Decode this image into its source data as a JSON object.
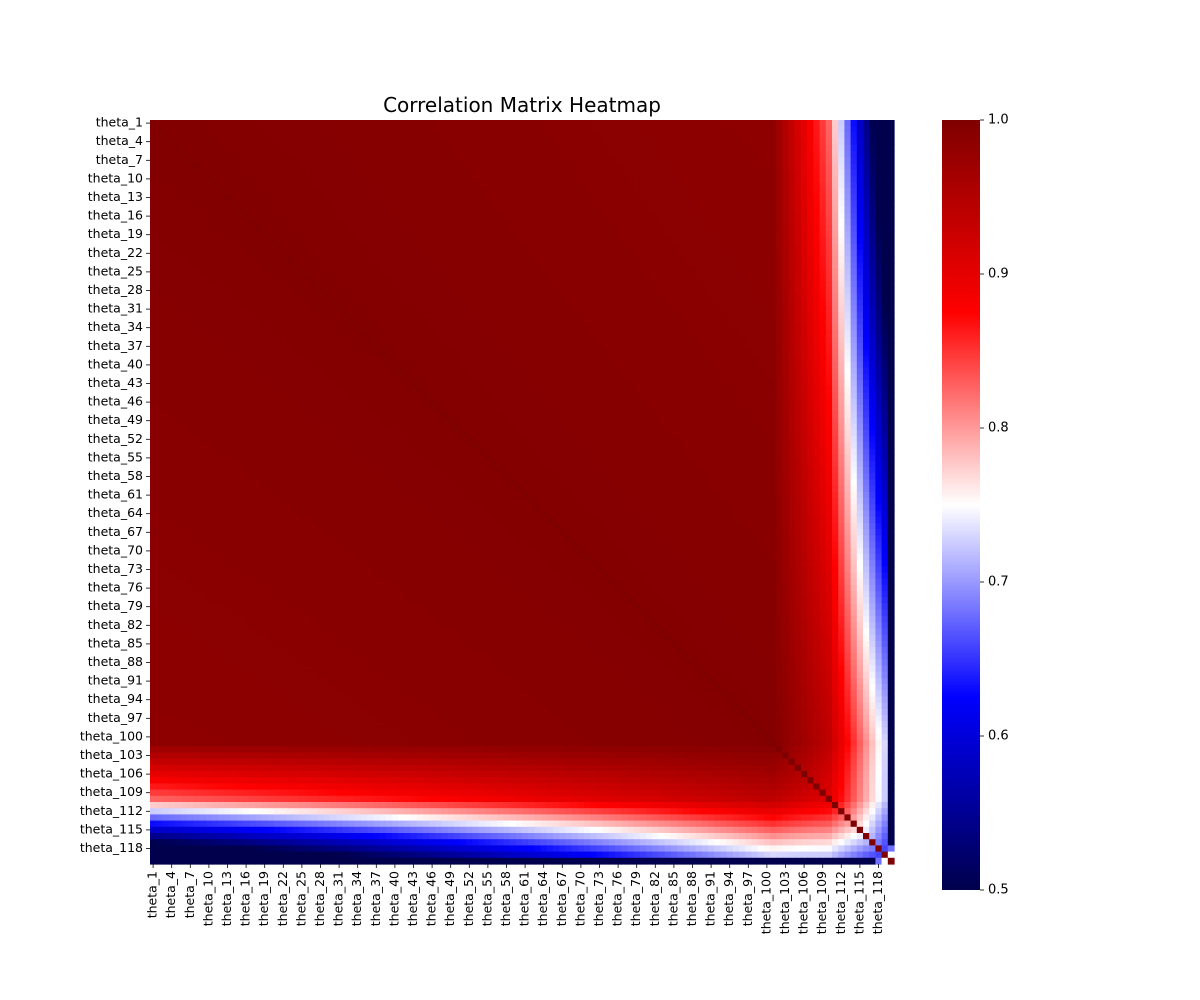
{
  "chart_data": {
    "type": "heatmap",
    "title": "Correlation Matrix Heatmap",
    "xlabel": "",
    "ylabel": "",
    "n_variables": 120,
    "variable_prefix": "theta_",
    "row_tick_labels": [
      "theta_1",
      "theta_4",
      "theta_7",
      "theta_10",
      "theta_13",
      "theta_16",
      "theta_19",
      "theta_22",
      "theta_25",
      "theta_28",
      "theta_31",
      "theta_34",
      "theta_37",
      "theta_40",
      "theta_43",
      "theta_46",
      "theta_49",
      "theta_52",
      "theta_55",
      "theta_58",
      "theta_61",
      "theta_64",
      "theta_67",
      "theta_70",
      "theta_73",
      "theta_76",
      "theta_79",
      "theta_82",
      "theta_85",
      "theta_88",
      "theta_91",
      "theta_94",
      "theta_97",
      "theta_100",
      "theta_103",
      "theta_106",
      "theta_109",
      "theta_112",
      "theta_115",
      "theta_118"
    ],
    "col_tick_labels": [
      "theta_1",
      "theta_4",
      "theta_7",
      "theta_10",
      "theta_13",
      "theta_16",
      "theta_19",
      "theta_22",
      "theta_25",
      "theta_28",
      "theta_31",
      "theta_34",
      "theta_37",
      "theta_40",
      "theta_43",
      "theta_46",
      "theta_49",
      "theta_52",
      "theta_55",
      "theta_58",
      "theta_61",
      "theta_64",
      "theta_67",
      "theta_70",
      "theta_73",
      "theta_76",
      "theta_79",
      "theta_82",
      "theta_85",
      "theta_88",
      "theta_91",
      "theta_94",
      "theta_97",
      "theta_100",
      "theta_103",
      "theta_106",
      "theta_109",
      "theta_112",
      "theta_115",
      "theta_118"
    ],
    "colormap": "seismic",
    "colormap_stops": [
      "#00004c",
      "#0000ff",
      "#ffffff",
      "#ff0000",
      "#7f0000"
    ],
    "vmin": 0.5,
    "vmax": 1.0,
    "colorbar_ticks": [
      "0.5",
      "0.6",
      "0.7",
      "0.8",
      "0.9",
      "1.0"
    ],
    "colorbar_values": [
      0.5,
      0.6,
      0.7,
      0.8,
      0.9,
      1.0
    ],
    "approx_correlation_profile": {
      "diagonal": 1.0,
      "core_block_rows_1_to_100": "0.88 to 1.0",
      "rows_110_to_119_vs_others": "0.75 to 0.9",
      "row_120_vs_others": "about 0.5",
      "row_120_vs_theta_118": 0.75
    }
  }
}
